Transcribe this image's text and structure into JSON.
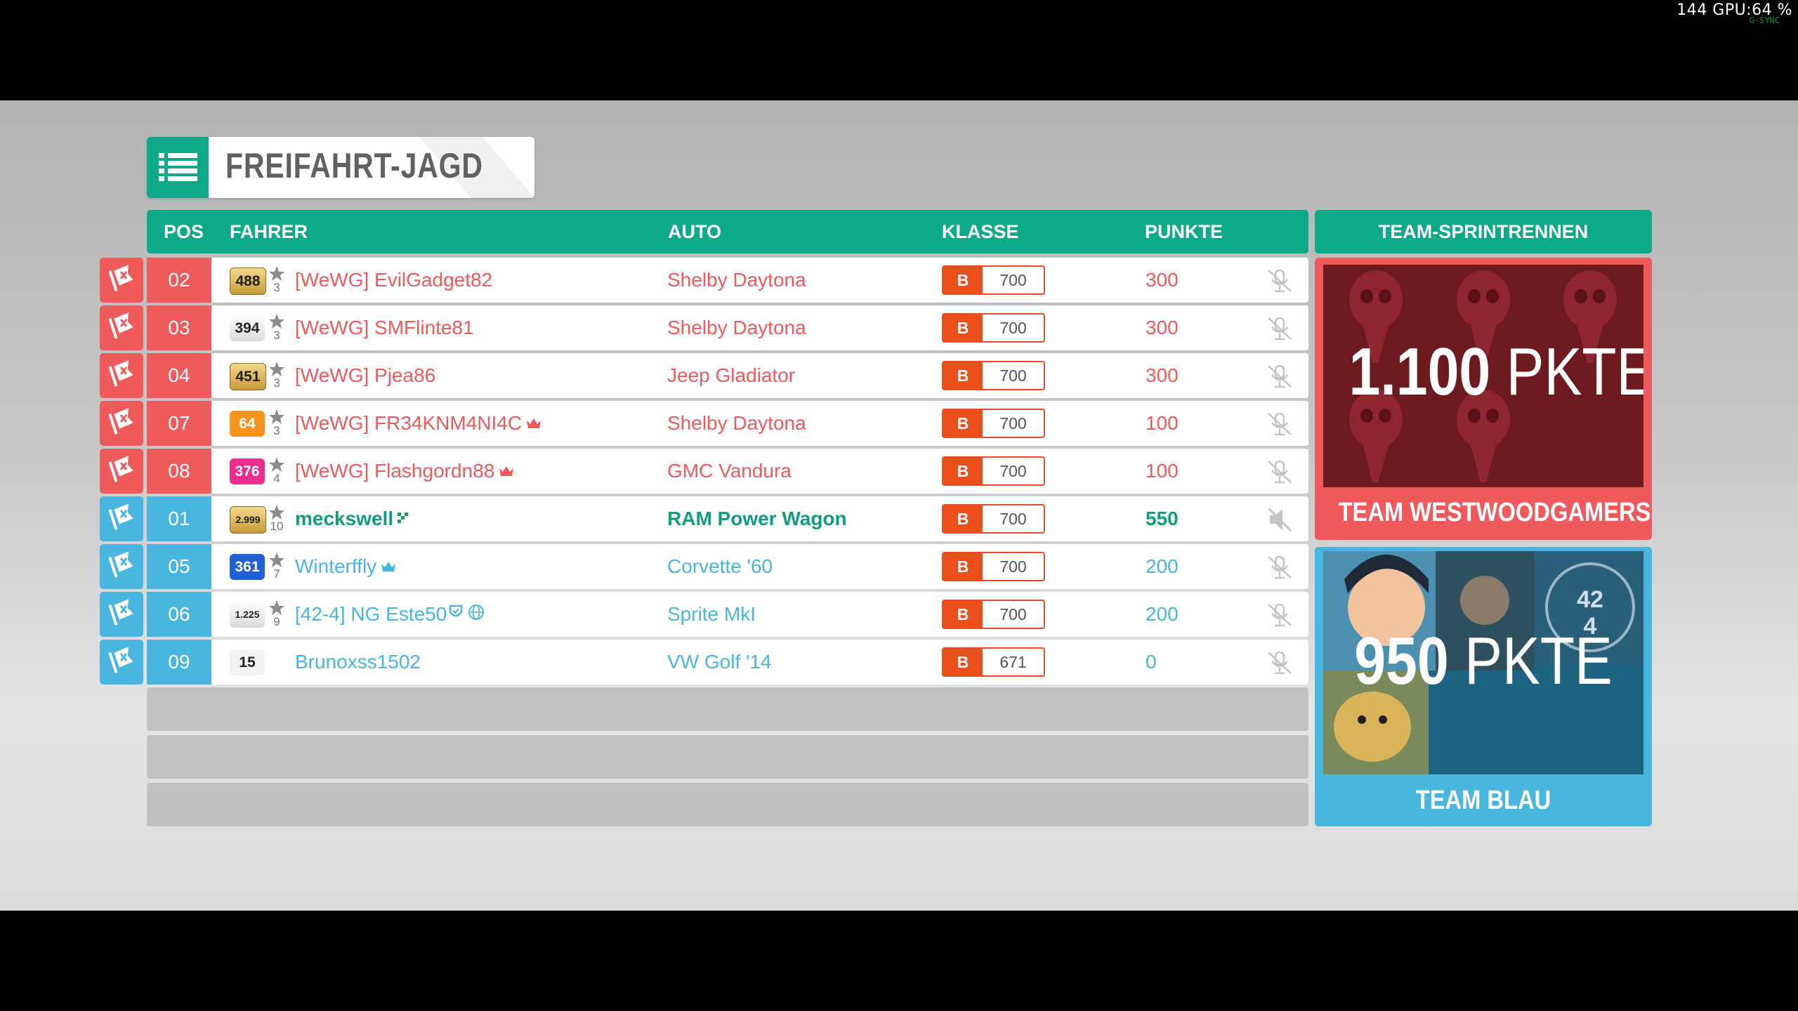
{
  "overlay": {
    "fps_text": "144 GPU:64 %",
    "fps_sub": "G-SYNC"
  },
  "title": {
    "text": "FREIFAHRT-JAGD",
    "icon": "list-icon"
  },
  "columns": {
    "pos": "POS",
    "driver": "FAHRER",
    "car": "AUTO",
    "class": "KLASSE",
    "points": "PUNKTE"
  },
  "team_section_title": "TEAM-SPRINTRENNEN",
  "colors": {
    "accent": "#0daa8a",
    "team_red": "#f05a5c",
    "team_blue": "#49b6e0",
    "highlight_green": "#0e9e7c",
    "class_orange": "#ea4e1c"
  },
  "rows": [
    {
      "team": "red",
      "pos": "02",
      "badge": "488",
      "badge_style": "gold",
      "stars": "3",
      "driver": "[WeWG] EvilGadget82",
      "driver_icon": "",
      "car": "Shelby Daytona",
      "class_letter": "B",
      "class_value": "700",
      "points": "300"
    },
    {
      "team": "red",
      "pos": "03",
      "badge": "394",
      "badge_style": "silver",
      "stars": "3",
      "driver": "[WeWG] SMFlinte81",
      "driver_icon": "",
      "car": "Shelby Daytona",
      "class_letter": "B",
      "class_value": "700",
      "points": "300"
    },
    {
      "team": "red",
      "pos": "04",
      "badge": "451",
      "badge_style": "gold",
      "stars": "3",
      "driver": "[WeWG] Pjea86",
      "driver_icon": "",
      "car": "Jeep Gladiator",
      "class_letter": "B",
      "class_value": "700",
      "points": "300"
    },
    {
      "team": "red",
      "pos": "07",
      "badge": "64",
      "badge_style": "orange",
      "stars": "3",
      "driver": "[WeWG] FR34KNM4NI4C",
      "driver_icon": "crown",
      "car": "Shelby Daytona",
      "class_letter": "B",
      "class_value": "700",
      "points": "100"
    },
    {
      "team": "red",
      "pos": "08",
      "badge": "376",
      "badge_style": "pink",
      "stars": "4",
      "driver": "[WeWG] Flashgordn88",
      "driver_icon": "crown",
      "car": "GMC Vandura",
      "class_letter": "B",
      "class_value": "700",
      "points": "100"
    },
    {
      "team": "blue",
      "pos": "01",
      "badge": "2.999",
      "badge_style": "gold",
      "stars": "10",
      "driver": "meckswell",
      "driver_icon": "sprint",
      "car": "RAM Power Wagon",
      "class_letter": "B",
      "class_value": "700",
      "points": "550",
      "is_player": true
    },
    {
      "team": "blue",
      "pos": "05",
      "badge": "361",
      "badge_style": "blue",
      "stars": "7",
      "driver": "Winterffly",
      "driver_icon": "crown",
      "car": "Corvette '60",
      "class_letter": "B",
      "class_value": "700",
      "points": "200"
    },
    {
      "team": "blue",
      "pos": "06",
      "badge": "1.225",
      "badge_style": "silver",
      "stars": "9",
      "driver": "[42-4] NG Este50",
      "driver_icon": "shield-globe",
      "car": "Sprite MkI",
      "class_letter": "B",
      "class_value": "700",
      "points": "200"
    },
    {
      "team": "blue",
      "pos": "09",
      "badge": "15",
      "badge_style": "plain",
      "stars": "",
      "driver": "Brunoxss1502",
      "driver_icon": "",
      "car": "VW Golf '14",
      "class_letter": "B",
      "class_value": "671",
      "points": "0"
    }
  ],
  "teams": [
    {
      "id": "red",
      "score_num": "1.100",
      "score_unit": "PKTE",
      "name": "TEAM WESTWOODGAMERS"
    },
    {
      "id": "blue",
      "score_num": "950",
      "score_unit": "PKTE",
      "name": "TEAM BLAU"
    }
  ]
}
